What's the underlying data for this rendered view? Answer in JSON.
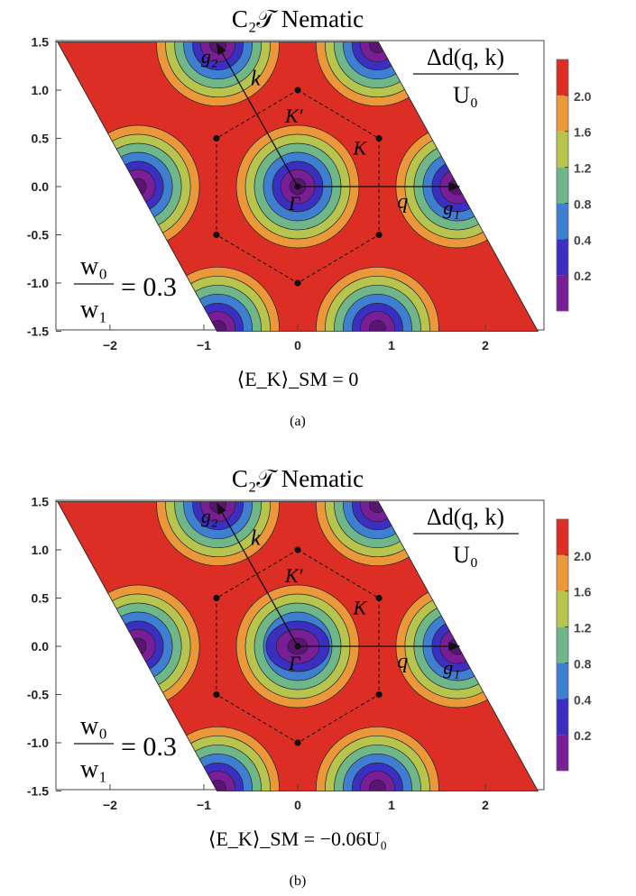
{
  "colors": {
    "levels": [
      "#7a1e98",
      "#3b2fc1",
      "#3f7fd2",
      "#6fb788",
      "#b7c54f",
      "#ea9839",
      "#dc2e25"
    ],
    "thresholds": [
      0.2,
      0.4,
      0.8,
      1.2,
      1.6,
      2.0
    ]
  },
  "panels": [
    {
      "id": "a",
      "title": "C₂𝒯  Nematic",
      "legend_label_num": "Δd(q, k)",
      "legend_label_den": "U₀",
      "ratio_num": "w₀",
      "ratio_den": "w₁",
      "ratio_value": "= 0.3",
      "xlabel": "⟨E_K⟩_SM = 0",
      "caption": "(a)",
      "points": {
        "gamma": "Γ",
        "k": "K",
        "kprime": "K′",
        "g1": "g₁",
        "g2": "g₂",
        "q": "q",
        "kvec": "k"
      }
    },
    {
      "id": "b",
      "title": "C₂𝒯  Nematic",
      "legend_label_num": "Δd(q, k)",
      "legend_label_den": "U₀",
      "ratio_num": "w₀",
      "ratio_den": "w₁",
      "ratio_value": "= 0.3",
      "xlabel": "⟨E_K⟩_SM = −0.06U₀",
      "caption": "(b)",
      "points": {
        "gamma": "Γ",
        "k": "K",
        "kprime": "K′",
        "g1": "g₁",
        "g2": "g₂",
        "q": "q",
        "kvec": "k"
      }
    }
  ],
  "chart_data": [
    {
      "type": "heatmap",
      "title": "C₂𝒯  Nematic",
      "xlabel": "⟨E_K⟩_SM = 0",
      "xlim": [
        -2.6,
        2.6
      ],
      "ylim": [
        -1.5,
        1.5
      ],
      "xticks": [
        "-2",
        "-1",
        "0",
        "1",
        "2"
      ],
      "yticks": [
        "1.5",
        "1.0",
        "0.5",
        "0.0",
        "-0.5",
        "-1.0",
        "-1.5"
      ],
      "colorbar_ticks": [
        "0.2",
        "0.4",
        "0.8",
        "1.2",
        "1.6",
        "2.0"
      ],
      "colorbar_label": "Δd(q,k)/U₀",
      "parameter": "w₀/w₁ = 0.3",
      "min_centers": [
        [
          0,
          0
        ],
        [
          1.7,
          0
        ],
        [
          -1.7,
          0
        ],
        [
          0.85,
          1.47
        ],
        [
          -0.85,
          1.47
        ],
        [
          0.85,
          -1.47
        ],
        [
          -0.85,
          -1.47
        ]
      ]
    },
    {
      "type": "heatmap",
      "title": "C₂𝒯  Nematic",
      "xlabel": "⟨E_K⟩_SM = −0.06U₀",
      "xlim": [
        -2.6,
        2.6
      ],
      "ylim": [
        -1.5,
        1.5
      ],
      "xticks": [
        "-2",
        "-1",
        "0",
        "1",
        "2"
      ],
      "yticks": [
        "1.5",
        "1.0",
        "0.5",
        "0.0",
        "-0.5",
        "-1.0",
        "-1.5"
      ],
      "colorbar_ticks": [
        "0.2",
        "0.4",
        "0.8",
        "1.2",
        "1.6",
        "2.0"
      ],
      "colorbar_label": "Δd(q,k)/U₀",
      "parameter": "w₀/w₁ = 0.3",
      "min_centers": [
        [
          0,
          0
        ],
        [
          1.7,
          0
        ],
        [
          -1.7,
          0
        ],
        [
          0.85,
          1.47
        ],
        [
          -0.85,
          1.47
        ],
        [
          0.85,
          -1.47
        ],
        [
          -0.85,
          -1.47
        ]
      ]
    }
  ]
}
